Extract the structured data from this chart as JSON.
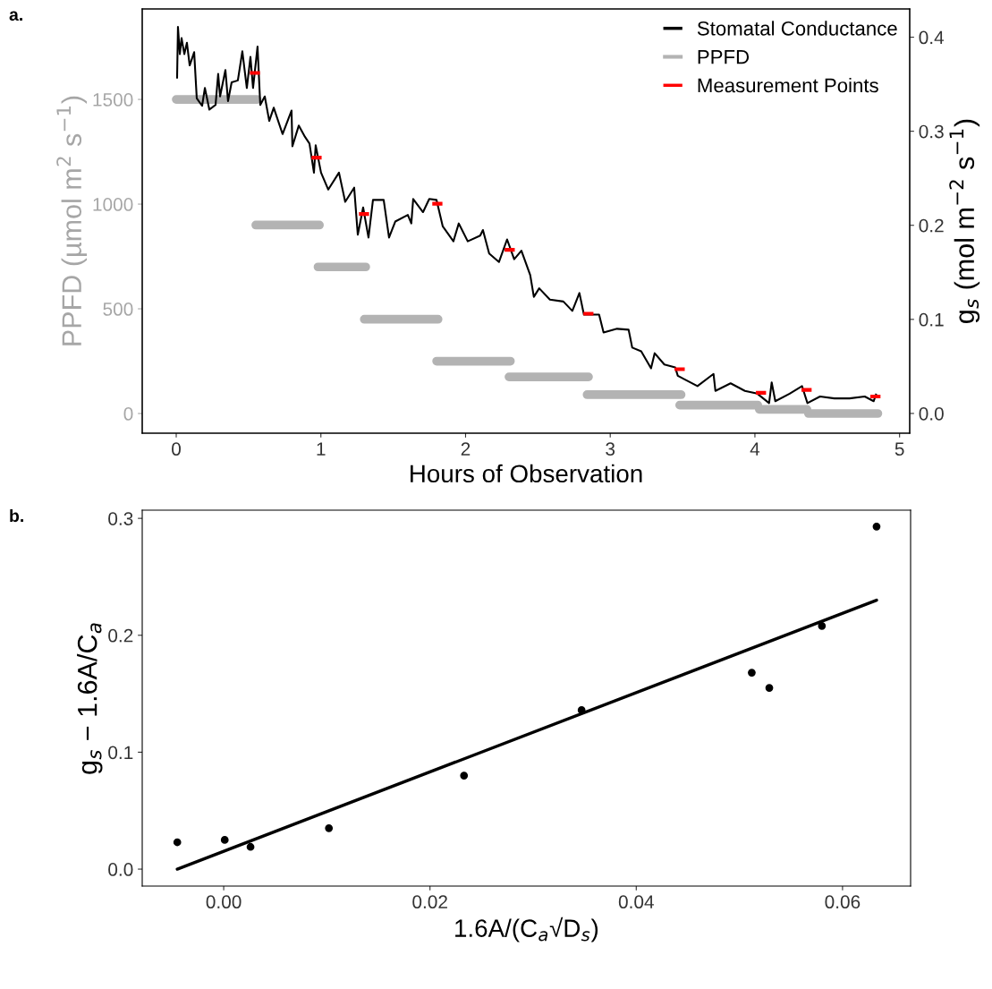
{
  "chart_data": [
    {
      "type": "line",
      "title": "a.",
      "xlabel": "Hours of Observation",
      "ylabel": "PPFD (µmol m$^{2}$ s$^{−1}$)",
      "y2label": "g$_{s}$ (mol m$^{−2}$ s$^{−1}$)",
      "xlim": [
        -0.235,
        5.07
      ],
      "xticks": [
        0,
        1,
        2,
        3,
        4,
        5
      ],
      "ylim": [
        -94,
        1932
      ],
      "yticks": [
        0,
        500,
        1000,
        1500
      ],
      "y2lim": [
        -0.021,
        0.43
      ],
      "y2ticks": [
        {
          "value": 0,
          "label": "0.0"
        },
        {
          "value": 0.1,
          "label": "0.1"
        },
        {
          "value": 0.2,
          "label": "0.2"
        },
        {
          "value": 0.3,
          "label": "0.3"
        },
        {
          "value": 0.4,
          "label": "0.4"
        }
      ],
      "grid": false,
      "legend": "top right",
      "marker": "none",
      "line_style": "solid",
      "series": [
        {
          "name": "Stomatal Conductance",
          "axis": "y2",
          "color": "#000000",
          "x": [
            0.006,
            0.012,
            0.025,
            0.037,
            0.056,
            0.074,
            0.093,
            0.124,
            0.142,
            0.179,
            0.198,
            0.229,
            0.272,
            0.29,
            0.303,
            0.34,
            0.358,
            0.383,
            0.426,
            0.457,
            0.488,
            0.513,
            0.531,
            0.562,
            0.581,
            0.612,
            0.643,
            0.674,
            0.735,
            0.797,
            0.803,
            0.847,
            0.89,
            0.921,
            0.952,
            0.964,
            1.001,
            1.051,
            1.125,
            1.168,
            1.23,
            1.255,
            1.292,
            1.329,
            1.36,
            1.434,
            1.471,
            1.514,
            1.601,
            1.625,
            1.638,
            1.706,
            1.749,
            1.799,
            1.842,
            1.916,
            1.953,
            2.015,
            2.101,
            2.12,
            2.163,
            2.231,
            2.287,
            2.336,
            2.386,
            2.447,
            2.472,
            2.509,
            2.583,
            2.676,
            2.738,
            2.787,
            2.818,
            2.923,
            2.954,
            3.047,
            3.127,
            3.152,
            3.214,
            3.282,
            3.307,
            3.374,
            3.449,
            3.467,
            3.603,
            3.714,
            3.727,
            3.832,
            3.931,
            4.017,
            4.098,
            4.116,
            4.141,
            4.24,
            4.326,
            4.363,
            4.45,
            4.549,
            4.654,
            4.759,
            4.821,
            4.839
          ],
          "values": [
            0.356,
            0.411,
            0.382,
            0.399,
            0.382,
            0.394,
            0.37,
            0.384,
            0.335,
            0.327,
            0.346,
            0.323,
            0.328,
            0.361,
            0.337,
            0.365,
            0.332,
            0.352,
            0.354,
            0.385,
            0.346,
            0.379,
            0.346,
            0.39,
            0.328,
            0.337,
            0.311,
            0.325,
            0.297,
            0.322,
            0.284,
            0.306,
            0.294,
            0.287,
            0.256,
            0.285,
            0.256,
            0.238,
            0.256,
            0.225,
            0.24,
            0.19,
            0.219,
            0.187,
            0.227,
            0.227,
            0.187,
            0.204,
            0.211,
            0.202,
            0.228,
            0.214,
            0.228,
            0.227,
            0.199,
            0.183,
            0.202,
            0.183,
            0.189,
            0.195,
            0.17,
            0.161,
            0.185,
            0.164,
            0.173,
            0.147,
            0.124,
            0.133,
            0.121,
            0.119,
            0.109,
            0.128,
            0.105,
            0.105,
            0.086,
            0.09,
            0.089,
            0.07,
            0.066,
            0.048,
            0.064,
            0.052,
            0.049,
            0.04,
            0.029,
            0.042,
            0.024,
            0.032,
            0.024,
            0.021,
            0.011,
            0.033,
            0.013,
            0.021,
            0.029,
            0.011,
            0.018,
            0.016,
            0.016,
            0.018,
            0.013,
            0.021
          ]
        },
        {
          "name": "PPFD",
          "axis": "y",
          "color": "#b3b3b3",
          "x": [
            0,
            0.56,
            null,
            0.55,
            0.99,
            null,
            0.98,
            1.31,
            null,
            1.3,
            1.81,
            null,
            1.8,
            2.31,
            null,
            2.3,
            2.85,
            null,
            2.84,
            3.49,
            null,
            3.48,
            4.02,
            null,
            4.03,
            4.36,
            null,
            4.37,
            4.85
          ],
          "values": [
            1500,
            1500,
            null,
            900,
            900,
            null,
            700,
            700,
            null,
            450,
            450,
            null,
            250,
            250,
            null,
            175,
            175,
            null,
            90,
            90,
            null,
            40,
            40,
            null,
            20,
            20,
            null,
            0,
            0
          ]
        },
        {
          "name": "Measurement Points",
          "axis": "y2",
          "color": "#ff0000",
          "x": [
            0.509,
            0.579,
            null,
            0.935,
            1.005,
            null,
            1.263,
            1.333,
            null,
            1.77,
            1.84,
            null,
            2.27,
            2.34,
            null,
            2.814,
            2.884,
            null,
            3.445,
            3.515,
            null,
            4.007,
            4.077,
            null,
            4.322,
            4.392,
            null,
            4.798,
            4.868
          ],
          "values": [
            0.362,
            0.362,
            null,
            0.272,
            0.272,
            null,
            0.212,
            0.212,
            null,
            0.223,
            0.223,
            null,
            0.174,
            0.174,
            null,
            0.106,
            0.106,
            null,
            0.047,
            0.047,
            null,
            0.022,
            0.022,
            null,
            0.025,
            0.025,
            null,
            0.018,
            0.018
          ]
        }
      ]
    },
    {
      "type": "scatter",
      "title": "b.",
      "xlabel": "1.6A/(C$_{a}$√D$_{s}$)",
      "ylabel": "g$_{s}$ − 1.6A/C$_{a}$",
      "xlim": [
        -0.0079,
        0.0666
      ],
      "xticks": [
        {
          "value": 0,
          "label": "0.00"
        },
        {
          "value": 0.02,
          "label": "0.02"
        },
        {
          "value": 0.04,
          "label": "0.04"
        },
        {
          "value": 0.06,
          "label": "0.06"
        }
      ],
      "ylim": [
        -0.0145,
        0.307
      ],
      "yticks": [
        {
          "value": 0,
          "label": "0.0"
        },
        {
          "value": 0.1,
          "label": "0.1"
        },
        {
          "value": 0.2,
          "label": "0.2"
        },
        {
          "value": 0.3,
          "label": "0.3"
        }
      ],
      "grid": false,
      "legend": false,
      "series": [
        {
          "type": "scatter",
          "marker": "circle",
          "color": "#000000",
          "x": [
            -0.0045,
            0.0001,
            0.0026,
            0.0102,
            0.0233,
            0.0347,
            0.0512,
            0.0529,
            0.058,
            0.0633
          ],
          "values": [
            0.023,
            0.025,
            0.019,
            0.035,
            0.08,
            0.136,
            0.168,
            0.155,
            0.208,
            0.293
          ]
        },
        {
          "type": "line",
          "marker": "none",
          "color": "#000000",
          "x": [
            -0.0045,
            0.0633
          ],
          "values": [
            0.0,
            0.23
          ]
        }
      ]
    }
  ]
}
